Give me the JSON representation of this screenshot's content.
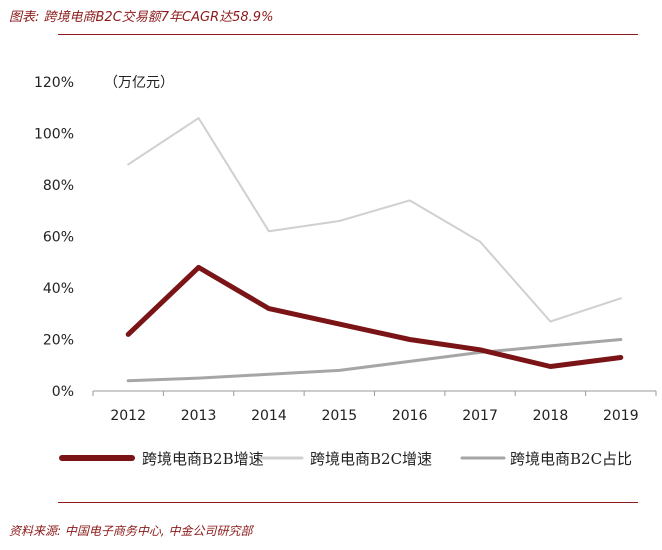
{
  "header": {
    "title": "图表: 跨境电商B2C交易额7年CAGR达58.9%"
  },
  "footer": {
    "source": "资料来源: 中国电子商务中心, 中金公司研究部"
  },
  "colors": {
    "accent": "#8b1a1a",
    "b2b_growth": "#7b1416",
    "b2c_growth": "#d0d0d0",
    "b2c_share": "#a6a6a6"
  },
  "chart_data": {
    "type": "line",
    "title": "",
    "unit_label": "（万亿元）",
    "xlabel": "",
    "ylabel": "",
    "categories": [
      "2012",
      "2013",
      "2014",
      "2015",
      "2016",
      "2017",
      "2018",
      "2019"
    ],
    "ylim": [
      0,
      120
    ],
    "yticks": [
      0,
      20,
      40,
      60,
      80,
      100,
      120
    ],
    "ytick_labels": [
      "0%",
      "20%",
      "40%",
      "60%",
      "80%",
      "100%",
      "120%"
    ],
    "series": [
      {
        "name": "跨境电商B2B增速",
        "values": [
          22,
          48,
          32,
          26,
          20,
          16,
          9.5,
          13
        ]
      },
      {
        "name": "跨境电商B2C增速",
        "values": [
          88,
          106,
          62,
          66,
          74,
          58,
          27,
          36
        ]
      },
      {
        "name": "跨境电商B2C占比",
        "values": [
          4,
          5,
          6.5,
          8,
          11.5,
          15,
          17.5,
          20
        ]
      }
    ],
    "legend_position": "bottom",
    "grid": false
  }
}
